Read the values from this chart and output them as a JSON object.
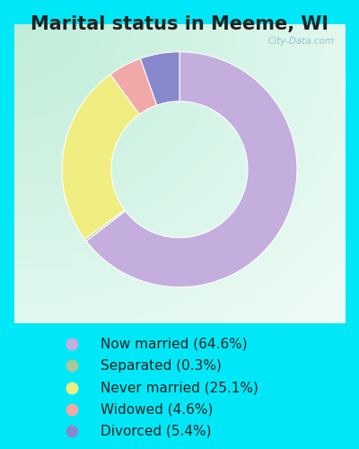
{
  "title": "Marital status in Meeme, WI",
  "slices": [
    {
      "label": "Now married (64.6%)",
      "value": 64.6,
      "color": "#C4AEDE"
    },
    {
      "label": "Separated (0.3%)",
      "value": 0.3,
      "color": "#A8C89A"
    },
    {
      "label": "Never married (25.1%)",
      "value": 25.1,
      "color": "#F0EE80"
    },
    {
      "label": "Widowed (4.6%)",
      "value": 4.6,
      "color": "#F0A8A8"
    },
    {
      "label": "Divorced (5.4%)",
      "value": 5.4,
      "color": "#8888CC"
    }
  ],
  "bg_outer": "#00E8F8",
  "bg_grad_left": "#C0ECD8",
  "bg_grad_right": "#F0FFF8",
  "watermark": "City-Data.com",
  "title_fontsize": 15,
  "legend_fontsize": 11,
  "title_color": "#222222"
}
